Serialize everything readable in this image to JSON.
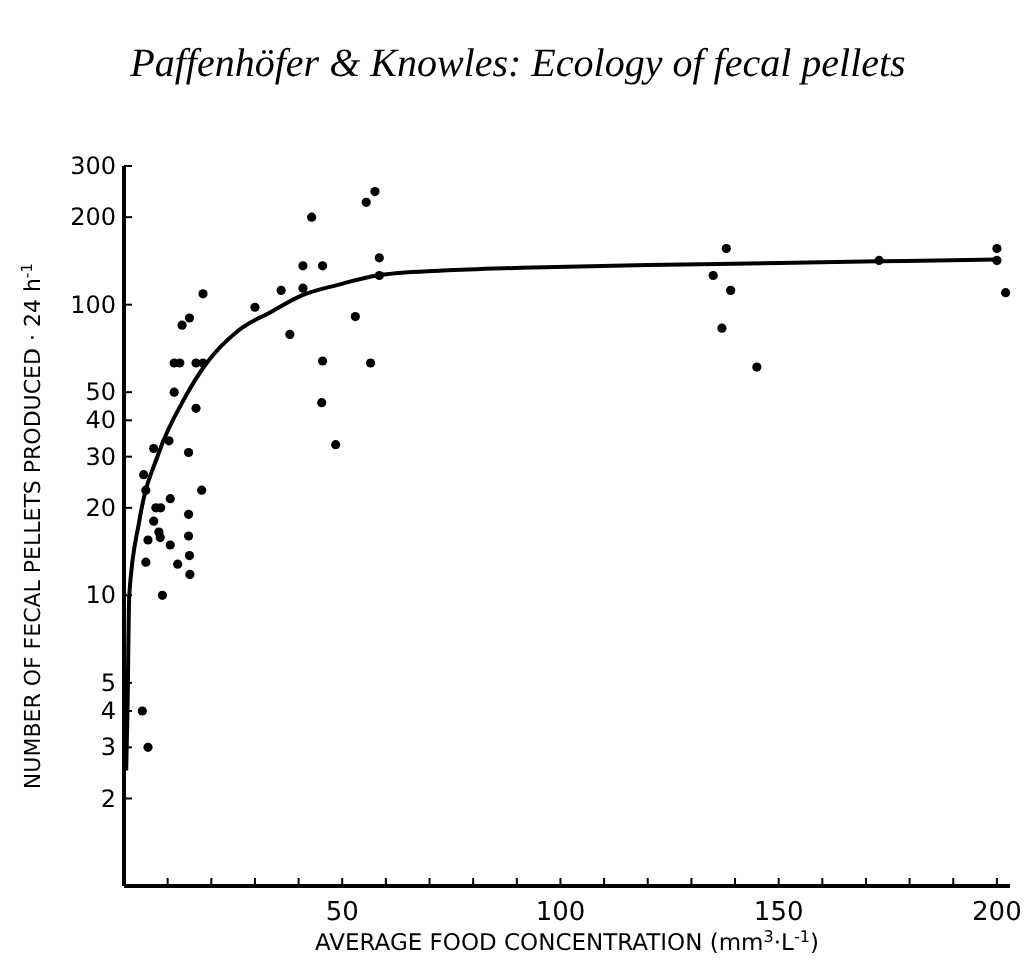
{
  "chart_data": {
    "type": "scatter",
    "title": "Paffenhöfer & Knowles: Ecology of fecal pellets",
    "xlabel": "AVERAGE FOOD CONCENTRATION (mm$^{3}$·L$^{-1}$)",
    "ylabel": "NUMBER OF FECAL PELLETS PRODUCED · 24 h$^{-1}$",
    "log": "y",
    "grid": false,
    "xlim": [
      0,
      203
    ],
    "xticks": [
      {
        "value": 10,
        "label": null
      },
      {
        "value": 20,
        "label": null
      },
      {
        "value": 30,
        "label": null
      },
      {
        "value": 40,
        "label": null
      },
      50,
      {
        "value": 60,
        "label": null
      },
      {
        "value": 70,
        "label": null
      },
      {
        "value": 80,
        "label": null
      },
      {
        "value": 90,
        "label": null
      },
      100,
      {
        "value": 110,
        "label": null
      },
      {
        "value": 120,
        "label": null
      },
      {
        "value": 130,
        "label": null
      },
      {
        "value": 140,
        "label": null
      },
      150,
      {
        "value": 160,
        "label": null
      },
      {
        "value": 170,
        "label": null
      },
      {
        "value": 180,
        "label": null
      },
      {
        "value": 190,
        "label": null
      },
      200
    ],
    "ylim": [
      1,
      300
    ],
    "yticks": [
      2,
      3,
      4,
      5,
      10,
      20,
      30,
      40,
      50,
      100,
      200,
      300
    ],
    "series": [
      {
        "color": "#000000",
        "marker": "circle",
        "x": [
          4.2,
          5.5,
          4.5,
          5,
          5,
          5.5,
          6.8,
          6.8,
          7.3,
          8.4,
          8,
          8.8,
          8.3,
          10.6,
          10.6,
          10.3,
          11.5,
          11.5,
          12.8,
          12.3,
          13.3,
          15,
          14.8,
          14.8,
          14.8,
          15,
          15.1,
          16.5,
          16.5,
          18.1,
          17.8,
          18.1,
          30,
          36,
          38,
          41,
          41,
          43,
          45.5,
          45.5,
          45.3,
          48.5,
          53,
          55.5,
          57.5,
          56.5,
          58.5,
          58.5,
          138,
          135,
          139,
          137,
          145,
          173,
          200,
          200,
          202
        ],
        "values": [
          4,
          3,
          26,
          23,
          13,
          15.5,
          32,
          18,
          20,
          20,
          16.5,
          10,
          15.8,
          21.5,
          14.9,
          34,
          50,
          63,
          63,
          12.8,
          85,
          90,
          31,
          19,
          16,
          13.7,
          11.8,
          44,
          63,
          63,
          23,
          109,
          98,
          112,
          79,
          114,
          136,
          200,
          136,
          64,
          46,
          33,
          91,
          225,
          245,
          63,
          145,
          126,
          156,
          126,
          112,
          83,
          61,
          142,
          156,
          142,
          110
        ]
      },
      {
        "type": "line",
        "color": "#000000",
        "line_style": "solid",
        "x": [
          0.5,
          0.8,
          1.2,
          3.5,
          8,
          14,
          18.6,
          26,
          34,
          41,
          49,
          58,
          73,
          91,
          120,
          150,
          173,
          200
        ],
        "values": [
          2.5,
          4,
          10,
          18,
          31,
          48,
          62,
          81,
          95,
          108,
          117,
          126,
          131,
          134,
          137,
          139,
          141,
          143
        ]
      }
    ]
  }
}
